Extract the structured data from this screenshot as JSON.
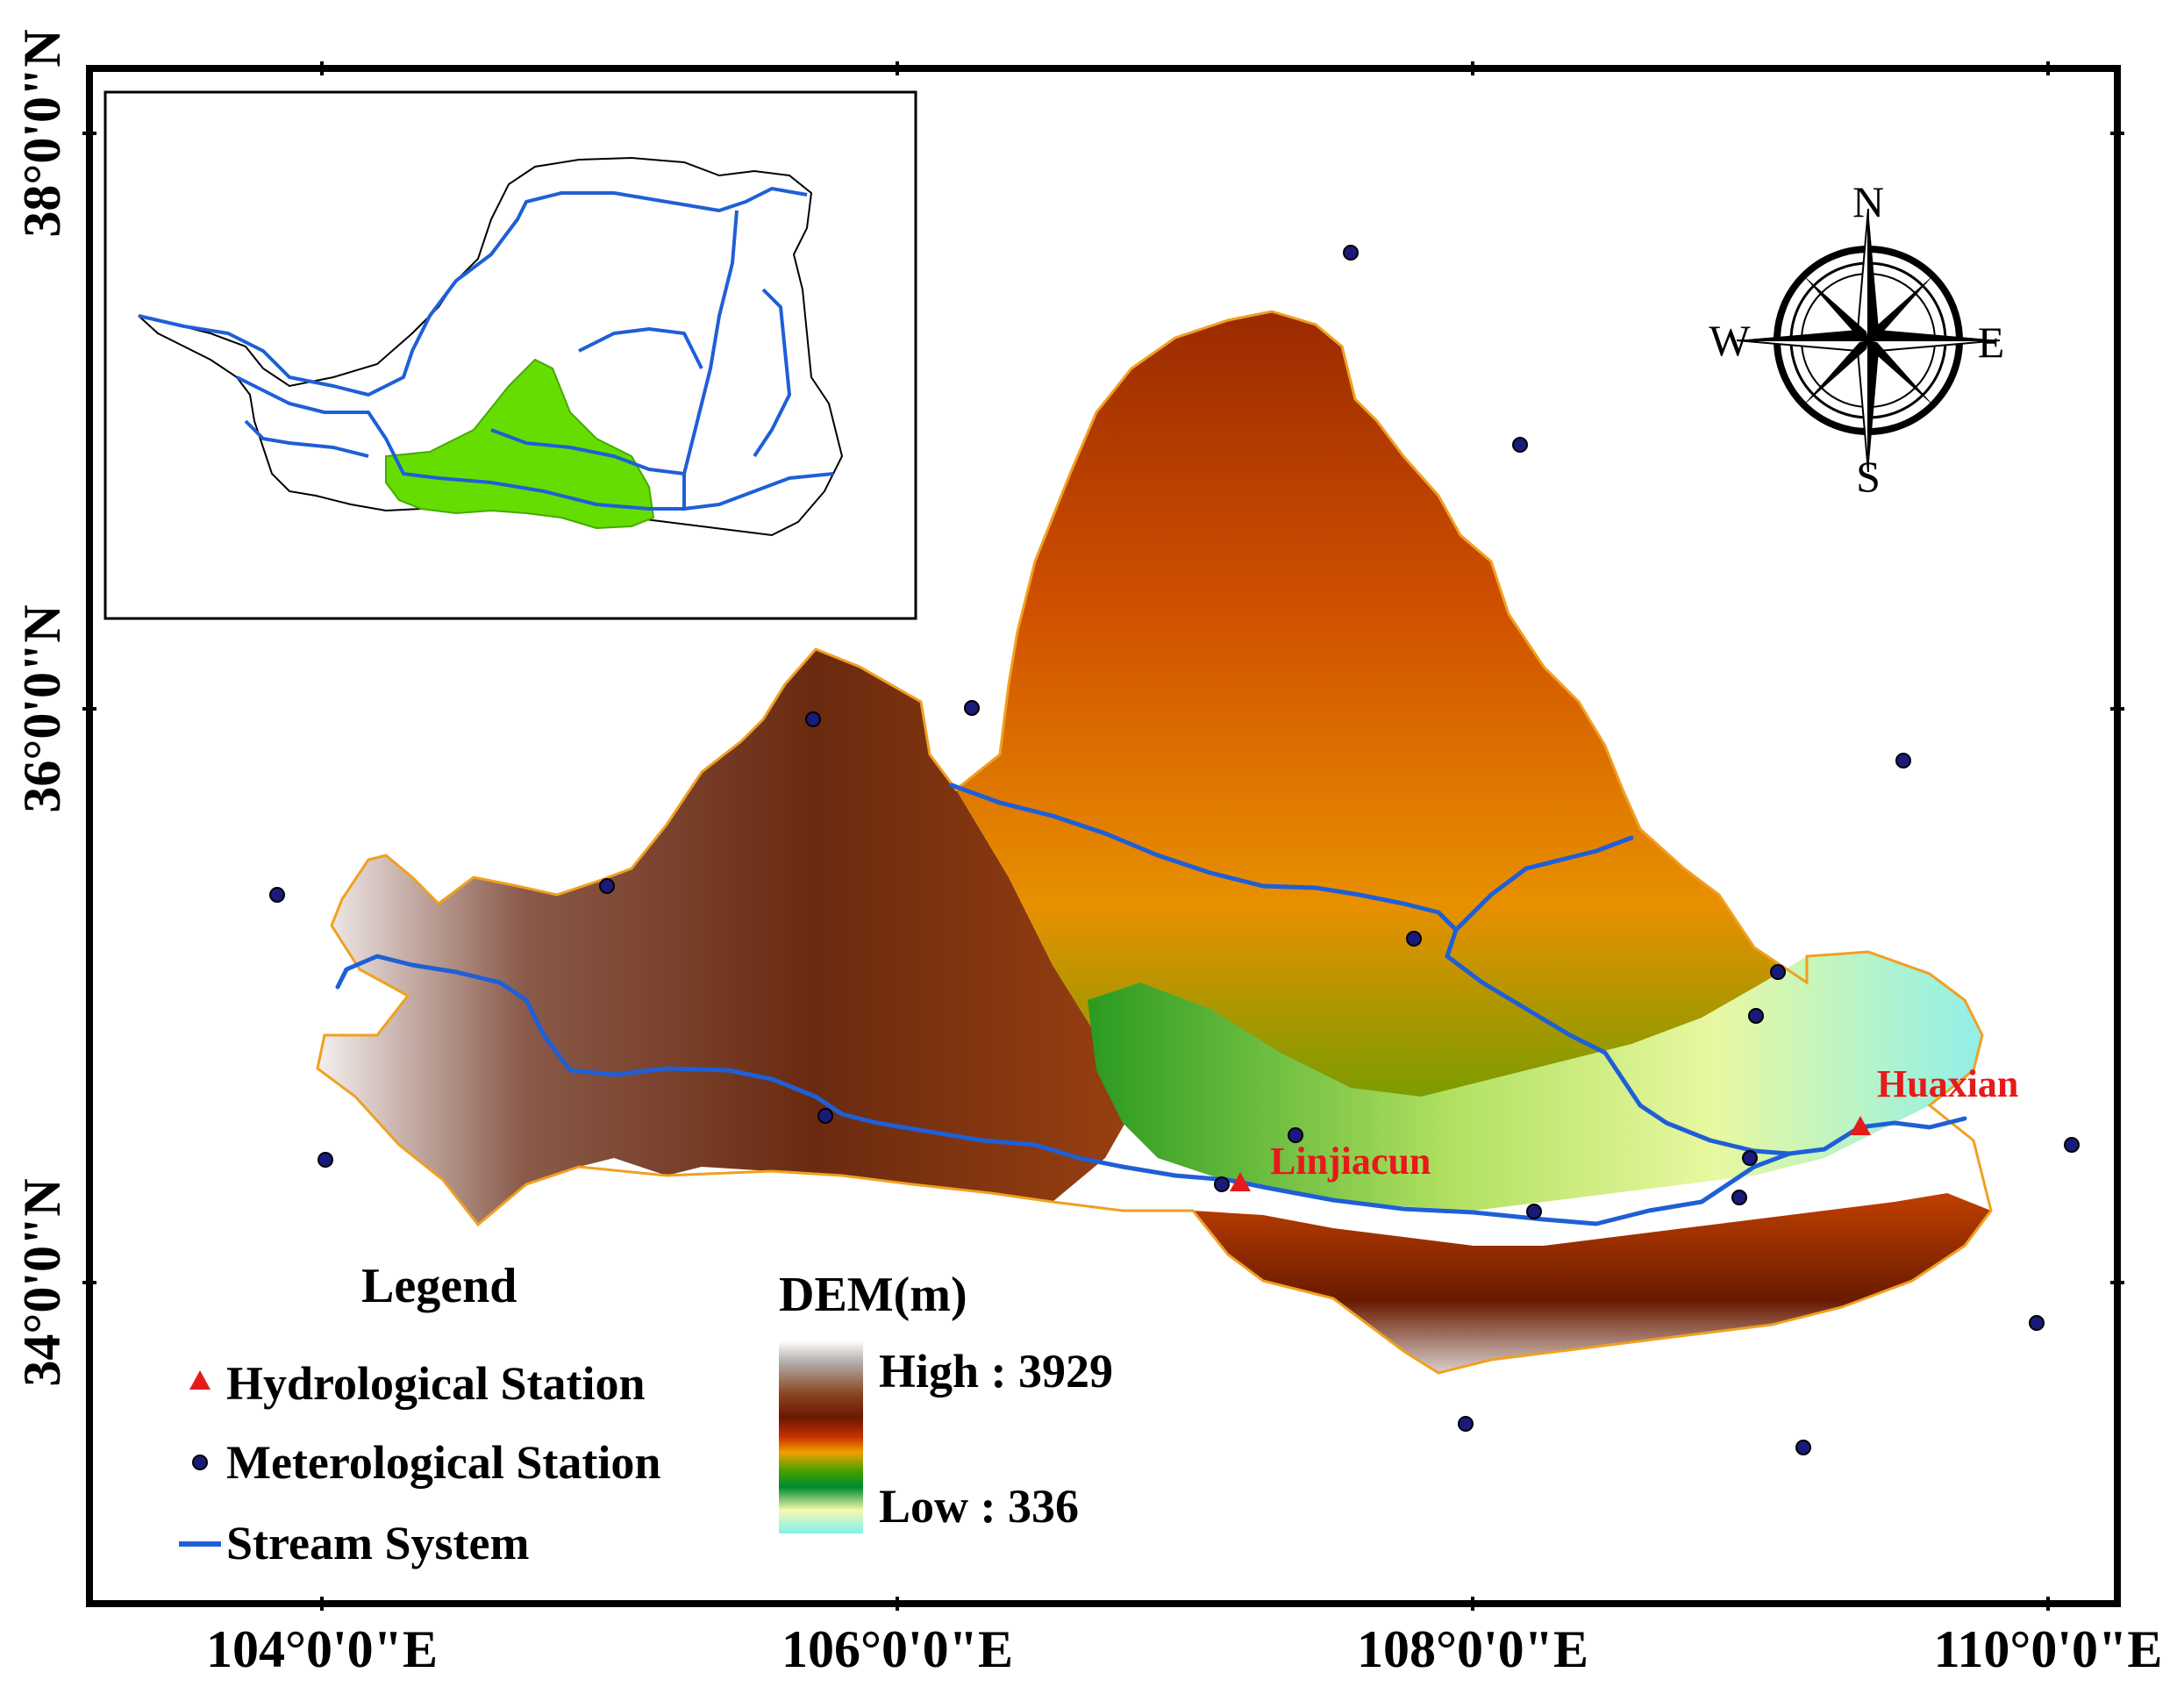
{
  "map": {
    "latitude_labels": [
      "38°0'0\"N",
      "36°0'0\"N",
      "34°0'0\"N"
    ],
    "longitude_labels": [
      "104°0'0\"E",
      "106°0'0\"E",
      "108°0'0\"E",
      "110°0'0\"E"
    ],
    "stations": {
      "hydrological": [
        {
          "name": "Linjiacun"
        },
        {
          "name": "Huaxian"
        }
      ]
    },
    "compass": {
      "north": "N",
      "south": "S",
      "east": "E",
      "west": "W"
    },
    "colors": {
      "stream": "#1f5fd6",
      "hydrological_station": "#e51a1a",
      "meteorological_station": "#1a1a7a",
      "inset_basin": "#66dd00",
      "boundary": "#f0a020"
    }
  },
  "legend": {
    "title": "Legend",
    "items": [
      {
        "label": "Hydrological Station",
        "symbol": "red-triangle"
      },
      {
        "label": "Meterological Station",
        "symbol": "navy-dot"
      },
      {
        "label": "Stream System",
        "symbol": "blue-line"
      }
    ]
  },
  "dem_legend": {
    "title": "DEM(m)",
    "high_label": "High : 3929",
    "low_label": "Low : 336",
    "high_value": 3929,
    "low_value": 336
  }
}
